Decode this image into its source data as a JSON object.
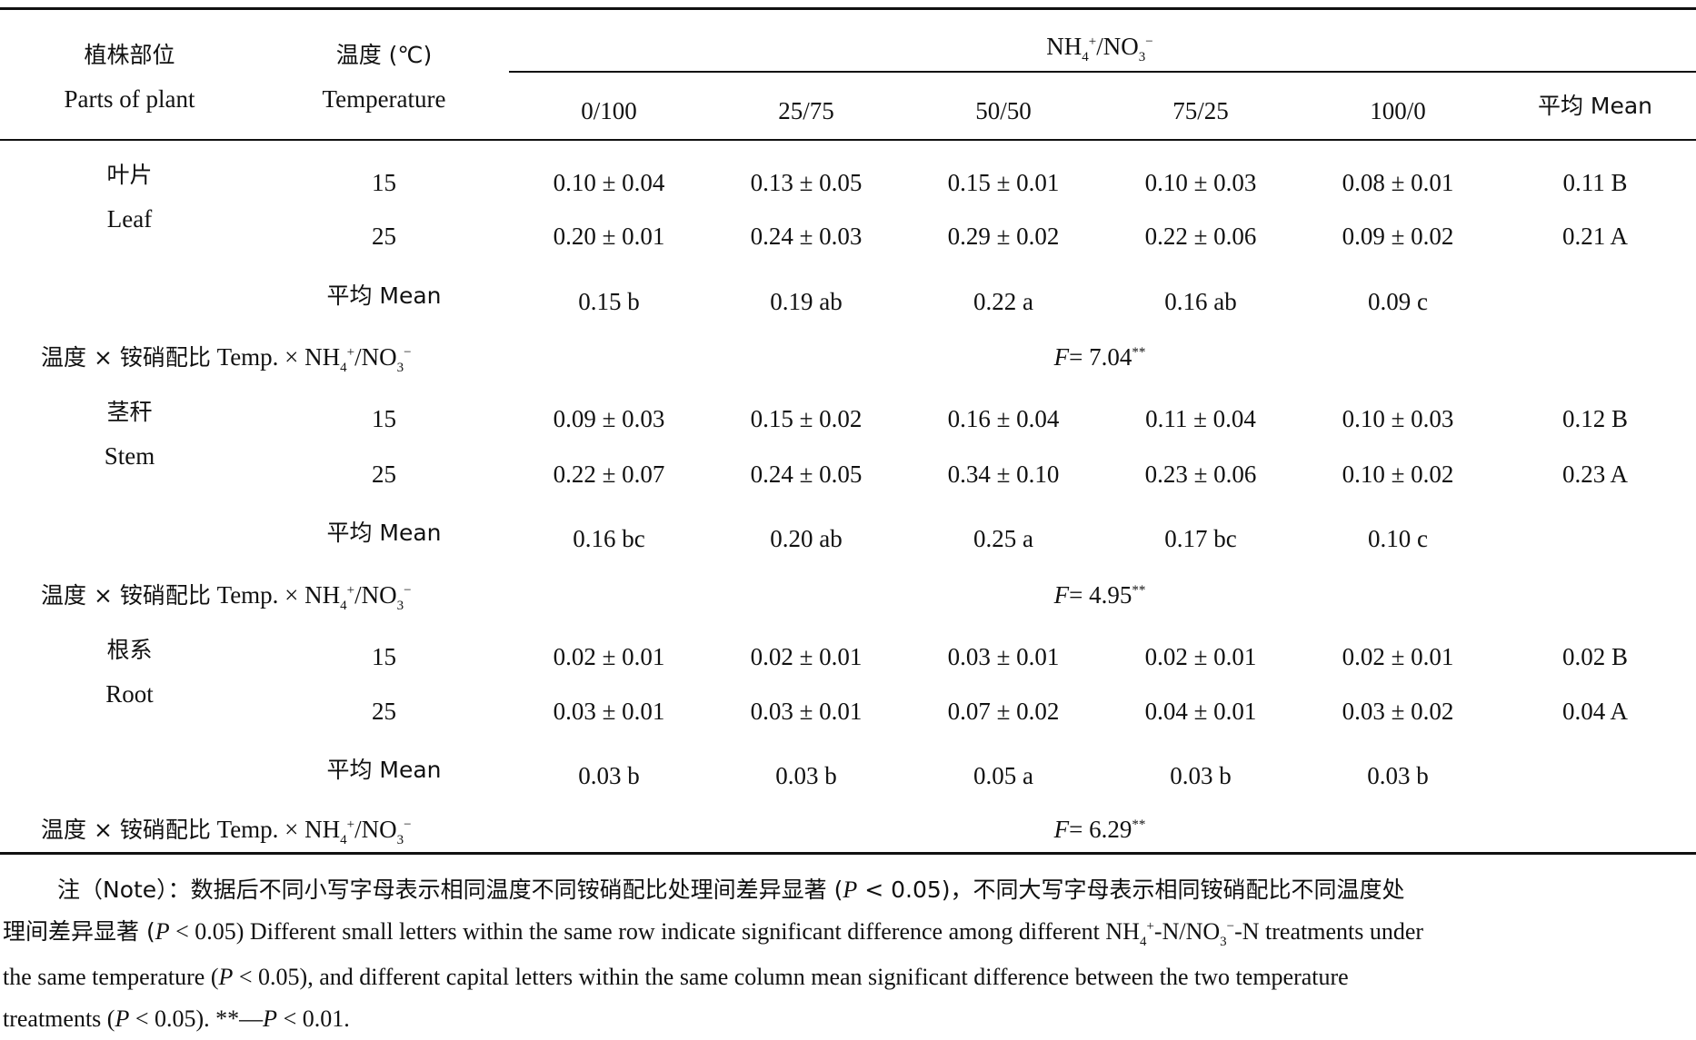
{
  "header": {
    "part_zh": "植株部位",
    "part_en": "Parts of plant",
    "temp_zh": "温度 (℃)",
    "temp_en": "Temperature",
    "ratio_nh": "NH",
    "ratio_sub": "4",
    "ratio_sup": "+",
    "ratio_no": "/NO",
    "ratio_sub2": "3",
    "ratio_sup2": "−",
    "cols": [
      "0/100",
      "25/75",
      "50/50",
      "75/25",
      "100/0"
    ],
    "mean_col": "平均 Mean"
  },
  "sections": [
    {
      "part_zh": "叶片",
      "part_en": "Leaf",
      "rows": [
        {
          "temp": "15",
          "values": [
            "0.10 ± 0.04",
            "0.13 ± 0.05",
            "0.15 ± 0.01",
            "0.10 ± 0.03",
            "0.08 ± 0.01"
          ],
          "mean": "0.11 B"
        },
        {
          "temp": "25",
          "values": [
            "0.20 ± 0.01",
            "0.24 ± 0.03",
            "0.29 ± 0.02",
            "0.22 ± 0.06",
            "0.09 ± 0.02"
          ],
          "mean": "0.21 A"
        }
      ],
      "mean_label": "平均 Mean",
      "means": [
        "0.15 b",
        "0.19 ab",
        "0.22 a",
        "0.16 ab",
        "0.09 c"
      ],
      "interaction_zh": "温度 × 铵硝配比",
      "interaction_en": "Temp. × NH",
      "f_value": "= 7.04"
    },
    {
      "part_zh": "茎秆",
      "part_en": "Stem",
      "rows": [
        {
          "temp": "15",
          "values": [
            "0.09 ± 0.03",
            "0.15 ± 0.02",
            "0.16 ± 0.04",
            "0.11 ± 0.04",
            "0.10 ± 0.03"
          ],
          "mean": "0.12 B"
        },
        {
          "temp": "25",
          "values": [
            "0.22 ± 0.07",
            "0.24 ± 0.05",
            "0.34 ± 0.10",
            "0.23 ± 0.06",
            "0.10 ± 0.02"
          ],
          "mean": "0.23 A"
        }
      ],
      "mean_label": "平均 Mean",
      "means": [
        "0.16 bc",
        "0.20 ab",
        "0.25 a",
        "0.17 bc",
        "0.10 c"
      ],
      "interaction_zh": "温度 × 铵硝配比",
      "interaction_en": "Temp. × NH",
      "f_value": "= 4.95"
    },
    {
      "part_zh": "根系",
      "part_en": "Root",
      "rows": [
        {
          "temp": "15",
          "values": [
            "0.02 ± 0.01",
            "0.02 ± 0.01",
            "0.03 ± 0.01",
            "0.02 ± 0.01",
            "0.02 ± 0.01"
          ],
          "mean": "0.02 B"
        },
        {
          "temp": "25",
          "values": [
            "0.03 ± 0.01",
            "0.03 ± 0.01",
            "0.07 ± 0.02",
            "0.04 ± 0.01",
            "0.03 ± 0.02"
          ],
          "mean": "0.04 A"
        }
      ],
      "mean_label": "平均 Mean",
      "means": [
        "0.03 b",
        "0.03 b",
        "0.05 a",
        "0.03 b",
        "0.03 b"
      ],
      "interaction_zh": "温度 × 铵硝配比",
      "interaction_en": "Temp. × NH",
      "f_value": "= 6.29"
    }
  ],
  "f_letter": "F",
  "f_star": "**",
  "note": {
    "l1_zh": "注（Note）：数据后不同小写字母表示相同温度不同铵硝配比处理间差异显著 (",
    "l1_p": "P",
    "l1_mid": " < 0.05)，不同大写字母表示相同铵硝配比不同温度处",
    "l2_zh": "理间差异显著 (",
    "l2_p": "P",
    "l2_text": " < 0.05) Different small letters within the same row indicate significant difference among different NH",
    "l2_text2": "-N/NO",
    "l2_text3": "-N treatments under",
    "l3_text": "the same temperature (",
    "l3_p": "P",
    "l3_text2": " < 0.05), and different capital letters within the same column mean significant difference between the two temperature",
    "l4_text": "treatments (",
    "l4_p": "P",
    "l4_text2": " < 0.05). **—",
    "l4_p2": "P",
    "l4_text3": " < 0.01."
  }
}
